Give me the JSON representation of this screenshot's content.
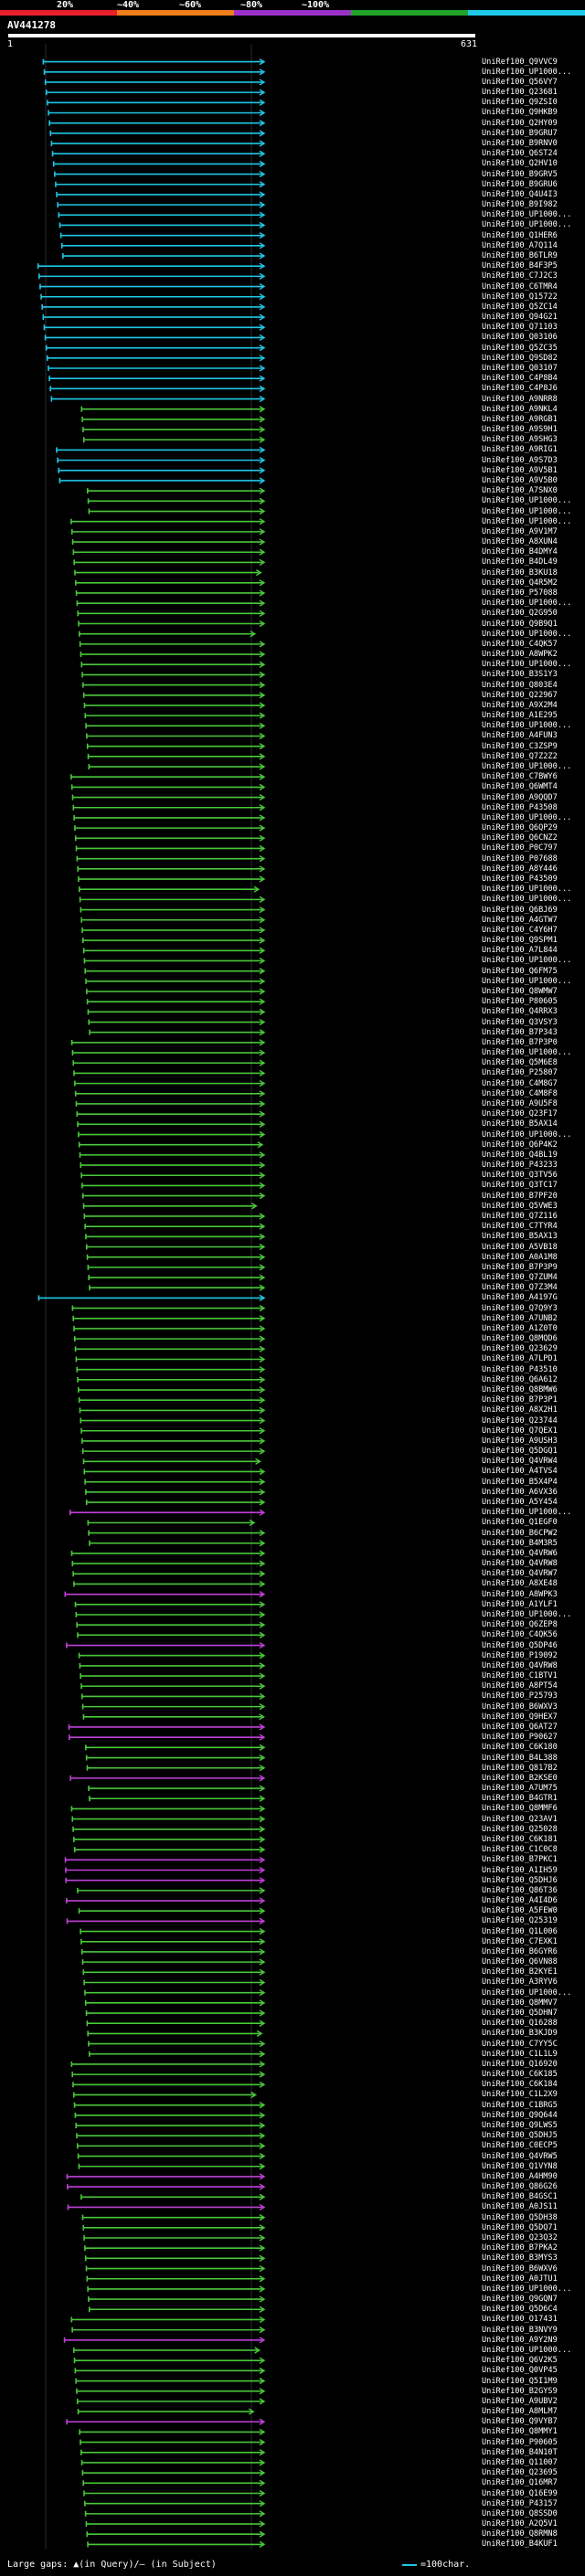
{
  "scale": {
    "labels": [
      "20%",
      "~40%",
      "~60%",
      "~80%",
      "~100%"
    ],
    "colors": [
      "#e8202a",
      "#f07d1a",
      "#9b30c8",
      "#22a32a",
      "#1ec8e6"
    ]
  },
  "query": {
    "name": "AV441278",
    "start": "1",
    "end": "631"
  },
  "footer": {
    "gaps_text": "Large gaps: ▲(in Query)/— (in Subject)",
    "unit_text": "=100char.",
    "unit_color": "#1ec8e6"
  },
  "hits": [
    {
      "label": "UniRef100_Q9VVC9",
      "class": "c"
    },
    {
      "label": "UniRef100_UP1000...",
      "class": "c"
    },
    {
      "label": "UniRef100_Q56VY7",
      "class": "c"
    },
    {
      "label": "UniRef100_Q23681",
      "class": "c"
    },
    {
      "label": "UniRef100_Q9ZSI0",
      "class": "c"
    },
    {
      "label": "UniRef100_Q9HKB9",
      "class": "c"
    },
    {
      "label": "UniRef100_Q2HY09",
      "class": "c"
    },
    {
      "label": "UniRef100_B9GRU7",
      "class": "c"
    },
    {
      "label": "UniRef100_B9RNV0",
      "class": "c"
    },
    {
      "label": "UniRef100_Q6ST24",
      "class": "c"
    },
    {
      "label": "UniRef100_Q2HV10",
      "class": "c"
    },
    {
      "label": "UniRef100_B9GRV5",
      "class": "c"
    },
    {
      "label": "UniRef100_B9GRU6",
      "class": "c"
    },
    {
      "label": "UniRef100_Q4U4I3",
      "class": "c"
    },
    {
      "label": "UniRef100_B9I982",
      "class": "c"
    },
    {
      "label": "UniRef100_UP1000...",
      "class": "c"
    },
    {
      "label": "UniRef100_UP1000...",
      "class": "c"
    },
    {
      "label": "UniRef100_Q1HER6",
      "class": "c"
    },
    {
      "label": "UniRef100_A7Q114",
      "class": "c"
    },
    {
      "label": "UniRef100_B6TLR9",
      "class": "c"
    },
    {
      "label": "UniRef100_B4F3P5",
      "class": "c"
    },
    {
      "label": "UniRef100_C7J2C3",
      "class": "c"
    },
    {
      "label": "UniRef100_C6TMR4",
      "class": "c"
    },
    {
      "label": "UniRef100_Q15722",
      "class": "c"
    },
    {
      "label": "UniRef100_Q5ZC14",
      "class": "c"
    },
    {
      "label": "UniRef100_Q94G21",
      "class": "c"
    },
    {
      "label": "UniRef100_Q71103",
      "class": "c"
    },
    {
      "label": "UniRef100_Q03106",
      "class": "c"
    },
    {
      "label": "UniRef100_Q5ZC35",
      "class": "c"
    },
    {
      "label": "UniRef100_Q9SD82",
      "class": "c"
    },
    {
      "label": "UniRef100_Q03107",
      "class": "c"
    },
    {
      "label": "UniRef100_C4P8B4",
      "class": "c"
    },
    {
      "label": "UniRef100_C4P8J6",
      "class": "c"
    },
    {
      "label": "UniRef100_A9NRR8",
      "class": "c"
    },
    {
      "label": "UniRef100_A9NKL4",
      "class": "g"
    },
    {
      "label": "UniRef100_A9RGB1",
      "class": "g"
    },
    {
      "label": "UniRef100_A9S9H1",
      "class": "g"
    },
    {
      "label": "UniRef100_A9SHG3",
      "class": "g"
    },
    {
      "label": "UniRef100_A9RIG1",
      "class": "c"
    },
    {
      "label": "UniRef100_A9S7D3",
      "class": "c"
    },
    {
      "label": "UniRef100_A9V5B1",
      "class": "c"
    },
    {
      "label": "UniRef100_A9V5B0",
      "class": "c"
    },
    {
      "label": "UniRef100_A7SNX0",
      "class": "g"
    },
    {
      "label": "UniRef100_UP1000...",
      "class": "g"
    },
    {
      "label": "UniRef100_UP1000...",
      "class": "g"
    },
    {
      "label": "UniRef100_UP1000...",
      "class": "g"
    },
    {
      "label": "UniRef100_A9V1M7",
      "class": "g"
    },
    {
      "label": "UniRef100_A8XUN4",
      "class": "g"
    },
    {
      "label": "UniRef100_B4DMY4",
      "class": "g"
    },
    {
      "label": "UniRef100_B4DL49",
      "class": "g"
    },
    {
      "label": "UniRef100_B3KU18",
      "class": "g"
    },
    {
      "label": "UniRef100_Q4R5M2",
      "class": "g"
    },
    {
      "label": "UniRef100_P57088",
      "class": "g"
    },
    {
      "label": "UniRef100_UP1000...",
      "class": "g"
    },
    {
      "label": "UniRef100_Q2G950",
      "class": "g"
    },
    {
      "label": "UniRef100_Q9B9Q1",
      "class": "g"
    },
    {
      "label": "UniRef100_UP1000...",
      "class": "g"
    },
    {
      "label": "UniRef100_C4QK57",
      "class": "g"
    },
    {
      "label": "UniRef100_A8WPK2",
      "class": "g"
    },
    {
      "label": "UniRef100_UP1000...",
      "class": "g"
    },
    {
      "label": "UniRef100_B3S1Y3",
      "class": "g"
    },
    {
      "label": "UniRef100_Q803E4",
      "class": "g"
    },
    {
      "label": "UniRef100_Q22967",
      "class": "g"
    },
    {
      "label": "UniRef100_A9X2M4",
      "class": "g"
    },
    {
      "label": "UniRef100_A1E295",
      "class": "g"
    },
    {
      "label": "UniRef100_UP1000...",
      "class": "g"
    },
    {
      "label": "UniRef100_A4FUN3",
      "class": "g"
    },
    {
      "label": "UniRef100_C3ZSP9",
      "class": "g"
    },
    {
      "label": "UniRef100_Q7Z2Z2",
      "class": "g"
    },
    {
      "label": "UniRef100_UP1000...",
      "class": "g"
    },
    {
      "label": "UniRef100_C7BWY6",
      "class": "g"
    },
    {
      "label": "UniRef100_Q6WMT4",
      "class": "g"
    },
    {
      "label": "UniRef100_A9QQD7",
      "class": "g"
    },
    {
      "label": "UniRef100_P43508",
      "class": "g"
    },
    {
      "label": "UniRef100_UP1000...",
      "class": "g"
    },
    {
      "label": "UniRef100_Q6QP29",
      "class": "g"
    },
    {
      "label": "UniRef100_Q6CNZ2",
      "class": "g"
    },
    {
      "label": "UniRef100_P0C797",
      "class": "g"
    },
    {
      "label": "UniRef100_P07688",
      "class": "g"
    },
    {
      "label": "UniRef100_A8Y446",
      "class": "g"
    },
    {
      "label": "UniRef100_P43509",
      "class": "g"
    },
    {
      "label": "UniRef100_UP1000...",
      "class": "g"
    },
    {
      "label": "UniRef100_UP1000...",
      "class": "g"
    },
    {
      "label": "UniRef100_Q6BJ69",
      "class": "g"
    },
    {
      "label": "UniRef100_A4GTW7",
      "class": "g"
    },
    {
      "label": "UniRef100_C4Y6H7",
      "class": "g"
    },
    {
      "label": "UniRef100_Q9SPM1",
      "class": "g"
    },
    {
      "label": "UniRef100_A7L844",
      "class": "g"
    },
    {
      "label": "UniRef100_UP1000...",
      "class": "g"
    },
    {
      "label": "UniRef100_Q6FM75",
      "class": "g"
    },
    {
      "label": "UniRef100_UP1000...",
      "class": "g"
    },
    {
      "label": "UniRef100_Q8WMW7",
      "class": "g"
    },
    {
      "label": "UniRef100_P80605",
      "class": "g"
    },
    {
      "label": "UniRef100_Q4RRX3",
      "class": "g"
    },
    {
      "label": "UniRef100_Q3VSY3",
      "class": "g"
    },
    {
      "label": "UniRef100_B7P343",
      "class": "g"
    },
    {
      "label": "UniRef100_B7P3P0",
      "class": "g"
    },
    {
      "label": "UniRef100_UP1000...",
      "class": "g"
    },
    {
      "label": "UniRef100_Q5M6E8",
      "class": "g"
    },
    {
      "label": "UniRef100_P25807",
      "class": "g"
    },
    {
      "label": "UniRef100_C4M8G7",
      "class": "g"
    },
    {
      "label": "UniRef100_C4M8F8",
      "class": "g"
    },
    {
      "label": "UniRef100_A9U5F8",
      "class": "g"
    },
    {
      "label": "UniRef100_Q23F17",
      "class": "g"
    },
    {
      "label": "UniRef100_B5AX14",
      "class": "g"
    },
    {
      "label": "UniRef100_UP1000...",
      "class": "g"
    },
    {
      "label": "UniRef100_Q6P4K2",
      "class": "g"
    },
    {
      "label": "UniRef100_Q4BL19",
      "class": "g"
    },
    {
      "label": "UniRef100_P43233",
      "class": "g"
    },
    {
      "label": "UniRef100_Q3TV56",
      "class": "g"
    },
    {
      "label": "UniRef100_Q3TC17",
      "class": "g"
    },
    {
      "label": "UniRef100_B7PF20",
      "class": "g"
    },
    {
      "label": "UniRef100_Q5VWE3",
      "class": "g"
    },
    {
      "label": "UniRef100_Q7Z116",
      "class": "g"
    },
    {
      "label": "UniRef100_C7TYR4",
      "class": "g"
    },
    {
      "label": "UniRef100_B5AX13",
      "class": "g"
    },
    {
      "label": "UniRef100_A5VB18",
      "class": "g"
    },
    {
      "label": "UniRef100_A0A1M8",
      "class": "g"
    },
    {
      "label": "UniRef100_B7P3P9",
      "class": "g"
    },
    {
      "label": "UniRef100_Q7ZUM4",
      "class": "g"
    },
    {
      "label": "UniRef100_Q7Z3M4",
      "class": "g"
    },
    {
      "label": "UniRef100_A4197G",
      "class": "c"
    },
    {
      "label": "UniRef100_Q7Q9Y3",
      "class": "g"
    },
    {
      "label": "UniRef100_A7UNB2",
      "class": "g"
    },
    {
      "label": "UniRef100_A1Z0T0",
      "class": "g"
    },
    {
      "label": "UniRef100_Q8MQD6",
      "class": "g"
    },
    {
      "label": "UniRef100_Q23629",
      "class": "g"
    },
    {
      "label": "UniRef100_A7LPD1",
      "class": "g"
    },
    {
      "label": "UniRef100_P43510",
      "class": "g"
    },
    {
      "label": "UniRef100_Q6A612",
      "class": "g"
    },
    {
      "label": "UniRef100_Q8BMW6",
      "class": "g"
    },
    {
      "label": "UniRef100_B7P3P1",
      "class": "g"
    },
    {
      "label": "UniRef100_A8X2H1",
      "class": "g"
    },
    {
      "label": "UniRef100_Q23744",
      "class": "g"
    },
    {
      "label": "UniRef100_Q7QEX1",
      "class": "g"
    },
    {
      "label": "UniRef100_A9USH3",
      "class": "g"
    },
    {
      "label": "UniRef100_Q5DGQ1",
      "class": "g"
    },
    {
      "label": "UniRef100_Q4VRW4",
      "class": "g"
    },
    {
      "label": "UniRef100_A4TVS4",
      "class": "g"
    },
    {
      "label": "UniRef100_B5X4P4",
      "class": "g"
    },
    {
      "label": "UniRef100_A6VX36",
      "class": "g"
    },
    {
      "label": "UniRef100_A5Y454",
      "class": "g"
    },
    {
      "label": "UniRef100_UP1000...",
      "class": "m"
    },
    {
      "label": "UniRef100_Q1EGF0",
      "class": "g"
    },
    {
      "label": "UniRef100_B6CPW2",
      "class": "g"
    },
    {
      "label": "UniRef100_B4M3R5",
      "class": "g"
    },
    {
      "label": "UniRef100_Q4VRW6",
      "class": "g"
    },
    {
      "label": "UniRef100_Q4VRW8",
      "class": "g"
    },
    {
      "label": "UniRef100_Q4VRW7",
      "class": "g"
    },
    {
      "label": "UniRef100_A8XE48",
      "class": "g"
    },
    {
      "label": "UniRef100_A8WPK3",
      "class": "m"
    },
    {
      "label": "UniRef100_A1YLF1",
      "class": "g"
    },
    {
      "label": "UniRef100_UP1000...",
      "class": "g"
    },
    {
      "label": "UniRef100_Q6ZEP8",
      "class": "g"
    },
    {
      "label": "UniRef100_C4QK56",
      "class": "g"
    },
    {
      "label": "UniRef100_Q5DP46",
      "class": "m"
    },
    {
      "label": "UniRef100_P19092",
      "class": "g"
    },
    {
      "label": "UniRef100_Q4VRW8",
      "class": "g"
    },
    {
      "label": "UniRef100_C1BTV1",
      "class": "g"
    },
    {
      "label": "UniRef100_A8PT54",
      "class": "g"
    },
    {
      "label": "UniRef100_P25793",
      "class": "g"
    },
    {
      "label": "UniRef100_B6WXV3",
      "class": "g"
    },
    {
      "label": "UniRef100_Q9HEX7",
      "class": "g"
    },
    {
      "label": "UniRef100_Q6AT27",
      "class": "m"
    },
    {
      "label": "UniRef100_P90627",
      "class": "m"
    },
    {
      "label": "UniRef100_C6K180",
      "class": "g"
    },
    {
      "label": "UniRef100_B4L388",
      "class": "g"
    },
    {
      "label": "UniRef100_Q817B2",
      "class": "g"
    },
    {
      "label": "UniRef100_B2KSE0",
      "class": "m"
    },
    {
      "label": "UniRef100_A7UM75",
      "class": "g"
    },
    {
      "label": "UniRef100_B4GTR1",
      "class": "g"
    },
    {
      "label": "UniRef100_Q8MMF6",
      "class": "g"
    },
    {
      "label": "UniRef100_Q23AV1",
      "class": "g"
    },
    {
      "label": "UniRef100_Q25028",
      "class": "g"
    },
    {
      "label": "UniRef100_C6K181",
      "class": "g"
    },
    {
      "label": "UniRef100_C1C0C8",
      "class": "g"
    },
    {
      "label": "UniRef100_B7PKC1",
      "class": "m"
    },
    {
      "label": "UniRef100_A1IH59",
      "class": "m"
    },
    {
      "label": "UniRef100_Q5DHJ6",
      "class": "m"
    },
    {
      "label": "UniRef100_Q86T36",
      "class": "g"
    },
    {
      "label": "UniRef100_A4I4D6",
      "class": "m"
    },
    {
      "label": "UniRef100_A5FEW0",
      "class": "g"
    },
    {
      "label": "UniRef100_Q25319",
      "class": "m"
    },
    {
      "label": "UniRef100_Q1L006",
      "class": "g"
    },
    {
      "label": "UniRef100_C7EXK1",
      "class": "g"
    },
    {
      "label": "UniRef100_B6GYR6",
      "class": "g"
    },
    {
      "label": "UniRef100_Q6VN88",
      "class": "g"
    },
    {
      "label": "UniRef100_B2KYE1",
      "class": "g"
    },
    {
      "label": "UniRef100_A3RYV6",
      "class": "g"
    },
    {
      "label": "UniRef100_UP1000...",
      "class": "g"
    },
    {
      "label": "UniRef100_Q8MMV7",
      "class": "g"
    },
    {
      "label": "UniRef100_Q5DHN7",
      "class": "g"
    },
    {
      "label": "UniRef100_Q16288",
      "class": "g"
    },
    {
      "label": "UniRef100_B3KJD9",
      "class": "g"
    },
    {
      "label": "UniRef100_C7YY5C",
      "class": "g"
    },
    {
      "label": "UniRef100_C1L1L9",
      "class": "g"
    },
    {
      "label": "UniRef100_Q16920",
      "class": "g"
    },
    {
      "label": "UniRef100_C6K185",
      "class": "g"
    },
    {
      "label": "UniRef100_C6K184",
      "class": "g"
    },
    {
      "label": "UniRef100_C1L2X9",
      "class": "g"
    },
    {
      "label": "UniRef100_C1BRG5",
      "class": "g"
    },
    {
      "label": "UniRef100_Q9Q644",
      "class": "g"
    },
    {
      "label": "UniRef100_Q9LWS5",
      "class": "g"
    },
    {
      "label": "UniRef100_Q5DHJ5",
      "class": "g"
    },
    {
      "label": "UniRef100_C0ECP5",
      "class": "g"
    },
    {
      "label": "UniRef100_Q4VRW5",
      "class": "g"
    },
    {
      "label": "UniRef100_Q1VYN8",
      "class": "g"
    },
    {
      "label": "UniRef100_A4HM90",
      "class": "m"
    },
    {
      "label": "UniRef100_Q86G26",
      "class": "m"
    },
    {
      "label": "UniRef100_B4GSC1",
      "class": "g"
    },
    {
      "label": "UniRef100_A0JS11",
      "class": "m"
    },
    {
      "label": "UniRef100_Q5DH38",
      "class": "g"
    },
    {
      "label": "UniRef100_Q5DQ71",
      "class": "g"
    },
    {
      "label": "UniRef100_Q23Q32",
      "class": "g"
    },
    {
      "label": "UniRef100_B7PKA2",
      "class": "g"
    },
    {
      "label": "UniRef100_B3MYS3",
      "class": "g"
    },
    {
      "label": "UniRef100_B6WXV6",
      "class": "g"
    },
    {
      "label": "UniRef100_A0JTU1",
      "class": "g"
    },
    {
      "label": "UniRef100_UP1000...",
      "class": "g"
    },
    {
      "label": "UniRef100_Q9GQN7",
      "class": "g"
    },
    {
      "label": "UniRef100_Q5D6C4",
      "class": "g"
    },
    {
      "label": "UniRef100_O17431",
      "class": "g"
    },
    {
      "label": "UniRef100_B3NVY9",
      "class": "g"
    },
    {
      "label": "UniRef100_A9Y2N9",
      "class": "m"
    },
    {
      "label": "UniRef100_UP1000...",
      "class": "g"
    },
    {
      "label": "UniRef100_Q6V2K5",
      "class": "g"
    },
    {
      "label": "UniRef100_Q0VP45",
      "class": "g"
    },
    {
      "label": "UniRef100_Q5I1M9",
      "class": "g"
    },
    {
      "label": "UniRef100_B2GYS9",
      "class": "g"
    },
    {
      "label": "UniRef100_A9UBV2",
      "class": "g"
    },
    {
      "label": "UniRef100_A8MLM7",
      "class": "g"
    },
    {
      "label": "UniRef100_Q9VYB7",
      "class": "m"
    },
    {
      "label": "UniRef100_Q8MMY1",
      "class": "g"
    },
    {
      "label": "UniRef100_P90605",
      "class": "g"
    },
    {
      "label": "UniRef100_B4N10T",
      "class": "g"
    },
    {
      "label": "UniRef100_Q11007",
      "class": "g"
    },
    {
      "label": "UniRef100_Q23695",
      "class": "g"
    },
    {
      "label": "UniRef100_Q16MR7",
      "class": "g"
    },
    {
      "label": "UniRef100_Q16E99",
      "class": "g"
    },
    {
      "label": "UniRef100_P43157",
      "class": "g"
    },
    {
      "label": "UniRef100_Q8SSD0",
      "class": "g"
    },
    {
      "label": "UniRef100_A2Q5V1",
      "class": "g"
    },
    {
      "label": "UniRef100_Q8RMN8",
      "class": "g"
    },
    {
      "label": "UniRef100_B4KUF1",
      "class": "g"
    }
  ]
}
